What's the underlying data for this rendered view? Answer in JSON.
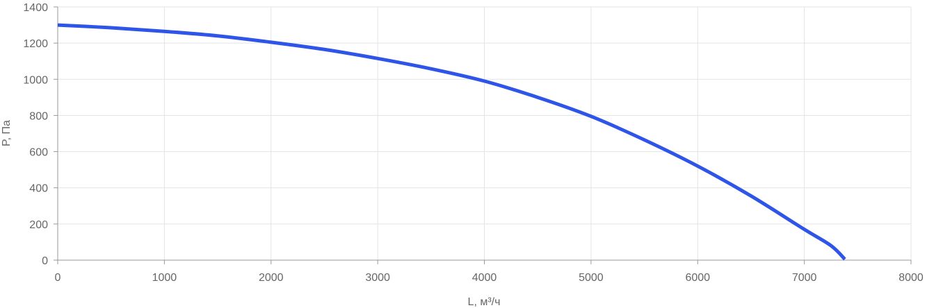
{
  "chart_data": {
    "type": "line",
    "xlabel": "L, м³/ч",
    "ylabel": "P, Па",
    "xlim": [
      0,
      8000
    ],
    "ylim": [
      0,
      1400
    ],
    "x_ticks": [
      0,
      1000,
      2000,
      3000,
      4000,
      5000,
      6000,
      7000,
      8000
    ],
    "y_ticks": [
      0,
      200,
      400,
      600,
      800,
      1000,
      1200,
      1400
    ],
    "x_tick_labels": [
      "0",
      "1000",
      "2000",
      "3000",
      "4000",
      "5000",
      "6000",
      "7000",
      "8000"
    ],
    "y_tick_labels": [
      "0",
      "200",
      "400",
      "600",
      "800",
      "1000",
      "1200",
      "1400"
    ],
    "grid": true,
    "series": [
      {
        "color": "#2f55e8",
        "x": [
          0,
          500,
          1000,
          1500,
          2000,
          2500,
          3000,
          3500,
          4000,
          4500,
          5000,
          5500,
          6000,
          6500,
          7000,
          7250,
          7380
        ],
        "y": [
          1300,
          1285,
          1265,
          1240,
          1205,
          1165,
          1115,
          1058,
          990,
          900,
          795,
          665,
          520,
          355,
          170,
          80,
          5
        ]
      }
    ]
  }
}
